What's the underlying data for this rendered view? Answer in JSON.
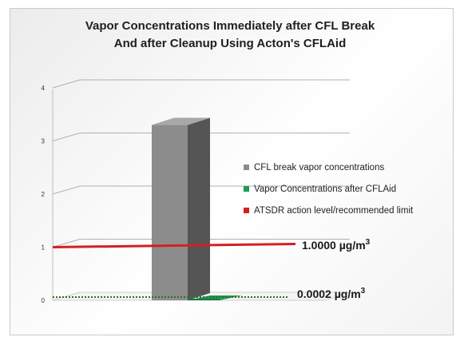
{
  "chart_data": {
    "type": "bar",
    "title_line1": "Vapor Concentrations Immediately after CFL Break",
    "title_line2": "And after Cleanup Using Acton's CFLAid",
    "yticks": [
      "0",
      "1",
      "2",
      "3",
      "4"
    ],
    "ylim": [
      0,
      4
    ],
    "grid": true,
    "legend_position": "right",
    "series": [
      {
        "name": "CFL break vapor concentrations",
        "value": 3.3,
        "color": "#8c8c8c"
      },
      {
        "name": "Vapor Concentrations after CFLAid",
        "value": 0.0002,
        "color": "#1e9c50"
      },
      {
        "name": "ATSDR action level/recommended limit",
        "value": 1.0,
        "color": "#d42020"
      }
    ],
    "annotations": {
      "action_level": {
        "value": 1.0,
        "text": "1.0000 µg/m",
        "sup": "3"
      },
      "after_cleanup": {
        "value": 0.0002,
        "text": "0.0002 µg/m",
        "sup": "3"
      }
    }
  }
}
